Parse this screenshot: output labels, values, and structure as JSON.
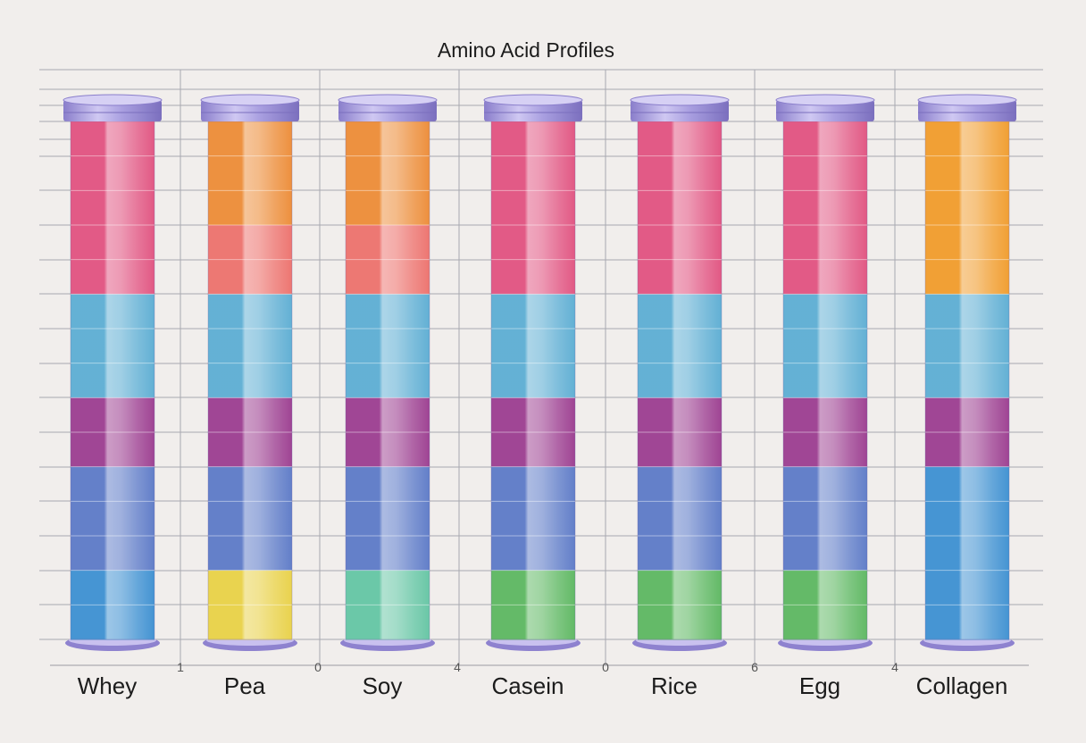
{
  "chart_data": {
    "type": "bar",
    "title": "Amino Acid Profiles",
    "categories": [
      "Whey",
      "Pea",
      "Soy",
      "Casein",
      "Rice",
      "Egg",
      "Collagen"
    ],
    "x_tick_labels": [
      "1",
      "0",
      "4",
      "0",
      "6",
      "4"
    ],
    "segments_per_bar": 15,
    "band_colors": {
      "pink": "#e0507e",
      "orange": "#ec8a34",
      "amber": "#f09a28",
      "coral": "#ec6f6a",
      "light_blue": "#5aacd2",
      "purple": "#9a3a8e",
      "blue": "#5a78c6",
      "yellow": "#e8d044",
      "mint": "#62c4a2",
      "green": "#5ab65e",
      "teal_blue": "#3a8ed0",
      "cap": "#9a8ed8"
    },
    "series": [
      {
        "category": "Whey",
        "segments": [
          "pink",
          "pink",
          "pink",
          "pink",
          "pink",
          "light_blue",
          "light_blue",
          "light_blue",
          "purple",
          "purple",
          "blue",
          "blue",
          "blue",
          "teal_blue",
          "teal_blue"
        ]
      },
      {
        "category": "Pea",
        "segments": [
          "orange",
          "orange",
          "orange",
          "coral",
          "coral",
          "light_blue",
          "light_blue",
          "light_blue",
          "purple",
          "purple",
          "blue",
          "blue",
          "blue",
          "yellow",
          "yellow"
        ]
      },
      {
        "category": "Soy",
        "segments": [
          "orange",
          "orange",
          "orange",
          "coral",
          "coral",
          "light_blue",
          "light_blue",
          "light_blue",
          "purple",
          "purple",
          "blue",
          "blue",
          "blue",
          "mint",
          "mint"
        ]
      },
      {
        "category": "Casein",
        "segments": [
          "pink",
          "pink",
          "pink",
          "pink",
          "pink",
          "light_blue",
          "light_blue",
          "light_blue",
          "purple",
          "purple",
          "blue",
          "blue",
          "blue",
          "green",
          "green"
        ]
      },
      {
        "category": "Rice",
        "segments": [
          "pink",
          "pink",
          "pink",
          "pink",
          "pink",
          "light_blue",
          "light_blue",
          "light_blue",
          "purple",
          "purple",
          "blue",
          "blue",
          "blue",
          "green",
          "green"
        ]
      },
      {
        "category": "Egg",
        "segments": [
          "pink",
          "pink",
          "pink",
          "pink",
          "pink",
          "light_blue",
          "light_blue",
          "light_blue",
          "purple",
          "purple",
          "blue",
          "blue",
          "blue",
          "green",
          "green"
        ]
      },
      {
        "category": "Collagen",
        "segments": [
          "amber",
          "amber",
          "amber",
          "amber",
          "amber",
          "light_blue",
          "light_blue",
          "light_blue",
          "purple",
          "purple",
          "teal_blue",
          "teal_blue",
          "teal_blue",
          "teal_blue",
          "teal_blue"
        ]
      }
    ],
    "grid": true,
    "legend": "none"
  }
}
